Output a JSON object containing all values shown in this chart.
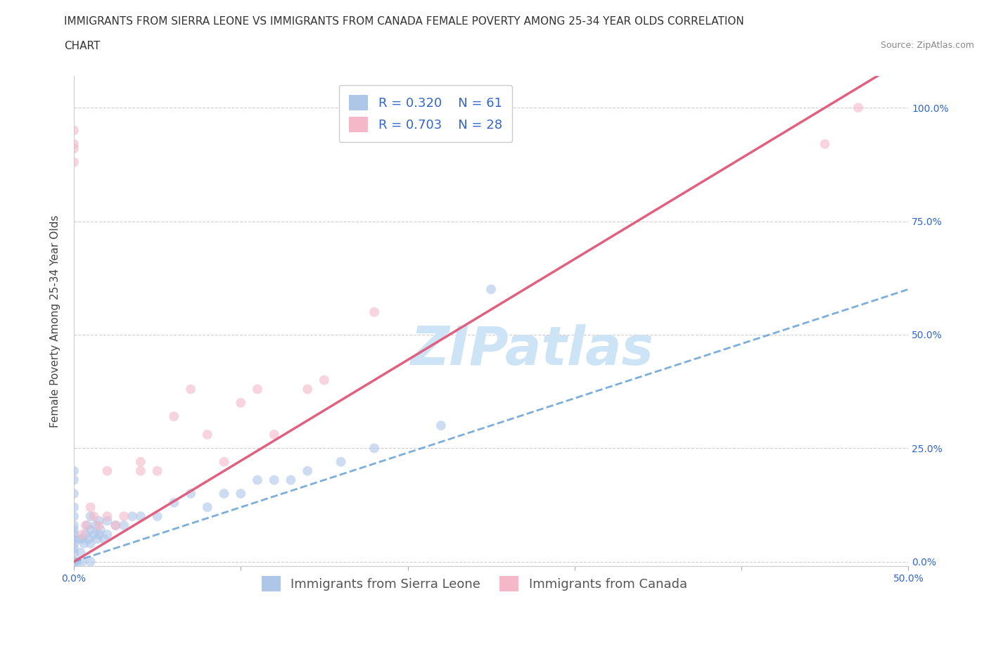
{
  "title_line1": "IMMIGRANTS FROM SIERRA LEONE VS IMMIGRANTS FROM CANADA FEMALE POVERTY AMONG 25-34 YEAR OLDS CORRELATION",
  "title_line2": "CHART",
  "source": "Source: ZipAtlas.com",
  "ylabel": "Female Poverty Among 25-34 Year Olds",
  "xmin": 0.0,
  "xmax": 0.5,
  "ymin": -0.01,
  "ymax": 1.07,
  "xticks": [
    0.0,
    0.1,
    0.2,
    0.3,
    0.4,
    0.5
  ],
  "xticklabels": [
    "0.0%",
    "",
    "",
    "",
    "",
    "50.0%"
  ],
  "ytick_positions": [
    0.0,
    0.25,
    0.5,
    0.75,
    1.0
  ],
  "yticklabels_right": [
    "0.0%",
    "25.0%",
    "50.0%",
    "75.0%",
    "100.0%"
  ],
  "legend_R_N": [
    {
      "R": "0.320",
      "N": "61",
      "color": "#aec6e8"
    },
    {
      "R": "0.703",
      "N": "28",
      "color": "#f4b8c8"
    }
  ],
  "legend_bottom": [
    "Immigrants from Sierra Leone",
    "Immigrants from Canada"
  ],
  "watermark_text": "ZIPatlas",
  "watermark_color": "#cce4f5",
  "background_color": "#ffffff",
  "grid_color": "#d0d0d0",
  "sl_color": "#aec6e8",
  "sl_line_color": "#5b9bd5",
  "ca_color": "#f4b8c8",
  "ca_line_color": "#e06080",
  "scatter_alpha": 0.6,
  "scatter_size": 100,
  "sl_x": [
    0.0,
    0.0,
    0.0,
    0.0,
    0.0,
    0.0,
    0.0,
    0.0,
    0.0,
    0.0,
    0.0,
    0.0,
    0.0,
    0.0,
    0.0,
    0.0,
    0.0,
    0.0,
    0.0,
    0.0,
    0.0,
    0.002,
    0.003,
    0.004,
    0.005,
    0.005,
    0.006,
    0.007,
    0.008,
    0.009,
    0.01,
    0.01,
    0.01,
    0.01,
    0.012,
    0.013,
    0.014,
    0.015,
    0.015,
    0.016,
    0.018,
    0.02,
    0.02,
    0.025,
    0.03,
    0.035,
    0.04,
    0.05,
    0.06,
    0.07,
    0.08,
    0.09,
    0.1,
    0.11,
    0.12,
    0.13,
    0.14,
    0.16,
    0.18,
    0.22,
    0.25
  ],
  "sl_y": [
    0.0,
    0.0,
    0.0,
    0.0,
    0.0,
    0.0,
    0.0,
    0.0,
    0.0,
    0.02,
    0.03,
    0.04,
    0.05,
    0.06,
    0.07,
    0.08,
    0.1,
    0.12,
    0.15,
    0.18,
    0.2,
    0.0,
    0.05,
    0.02,
    0.0,
    0.05,
    0.04,
    0.06,
    0.08,
    0.05,
    0.0,
    0.04,
    0.07,
    0.1,
    0.06,
    0.08,
    0.05,
    0.06,
    0.09,
    0.07,
    0.05,
    0.06,
    0.09,
    0.08,
    0.08,
    0.1,
    0.1,
    0.1,
    0.13,
    0.15,
    0.12,
    0.15,
    0.15,
    0.18,
    0.18,
    0.18,
    0.2,
    0.22,
    0.25,
    0.3,
    0.6
  ],
  "ca_x": [
    0.0,
    0.0,
    0.0,
    0.0,
    0.005,
    0.007,
    0.01,
    0.012,
    0.015,
    0.02,
    0.02,
    0.025,
    0.03,
    0.04,
    0.04,
    0.05,
    0.06,
    0.07,
    0.08,
    0.09,
    0.1,
    0.11,
    0.12,
    0.14,
    0.15,
    0.18,
    0.45,
    0.47
  ],
  "ca_y": [
    0.88,
    0.91,
    0.92,
    0.95,
    0.06,
    0.08,
    0.12,
    0.1,
    0.08,
    0.1,
    0.2,
    0.08,
    0.1,
    0.2,
    0.22,
    0.2,
    0.32,
    0.38,
    0.28,
    0.22,
    0.35,
    0.38,
    0.28,
    0.38,
    0.4,
    0.55,
    0.92,
    1.0
  ],
  "title_fontsize": 11,
  "axis_label_fontsize": 11,
  "tick_fontsize": 10,
  "legend_fontsize": 13,
  "source_fontsize": 9,
  "tick_color": "#3366cc"
}
